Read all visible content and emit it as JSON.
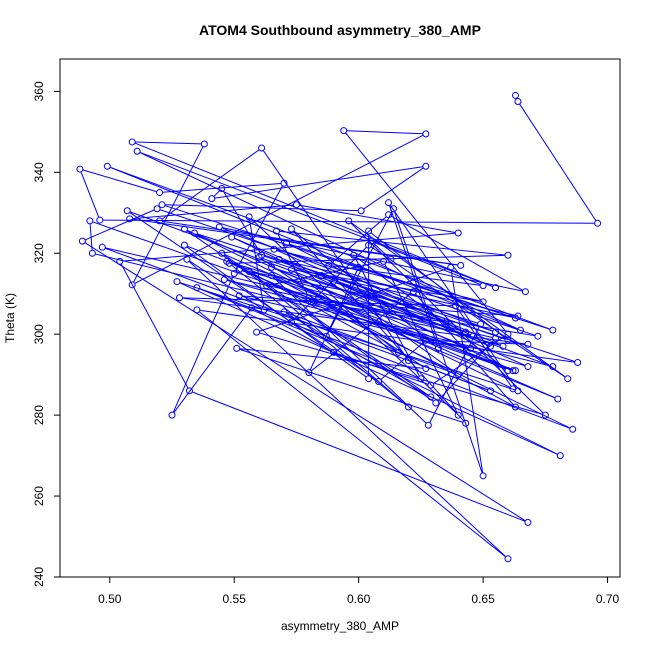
{
  "chart_data": {
    "type": "line",
    "title": "ATOM4 Southbound asymmetry_380_AMP",
    "xlabel": "asymmetry_380_AMP",
    "ylabel": "Theta (K)",
    "xlim": [
      0.48,
      0.705
    ],
    "ylim": [
      240,
      368
    ],
    "x_ticks": [
      0.5,
      0.55,
      0.6,
      0.65,
      0.7
    ],
    "x_tick_labels": [
      "0.50",
      "0.55",
      "0.60",
      "0.65",
      "0.70"
    ],
    "y_ticks": [
      240,
      260,
      280,
      300,
      320,
      340,
      360
    ],
    "y_tick_labels": [
      "240",
      "260",
      "280",
      "300",
      "320",
      "340",
      "360"
    ],
    "grid": false,
    "legend": "none",
    "series": [
      {
        "color": "#0000ff",
        "marker": "open-circle",
        "points": [
          [
            0.663,
            359.0
          ],
          [
            0.664,
            357.5
          ],
          [
            0.696,
            327.4
          ],
          [
            0.496,
            328.2
          ],
          [
            0.488,
            340.8
          ],
          [
            0.52,
            335.0
          ],
          [
            0.57,
            337.3
          ],
          [
            0.55,
            315.0
          ],
          [
            0.525,
            280.0
          ],
          [
            0.557,
            306.5
          ],
          [
            0.59,
            295.5
          ],
          [
            0.629,
            287.4
          ],
          [
            0.66,
            300.0
          ],
          [
            0.594,
            350.3
          ],
          [
            0.627,
            349.5
          ],
          [
            0.509,
            312.2
          ],
          [
            0.538,
            347.0
          ],
          [
            0.509,
            347.5
          ],
          [
            0.655,
            311.5
          ],
          [
            0.511,
            345.2
          ],
          [
            0.665,
            301.0
          ],
          [
            0.499,
            341.5
          ],
          [
            0.678,
            301.0
          ],
          [
            0.521,
            332.0
          ],
          [
            0.601,
            330.5
          ],
          [
            0.627,
            341.5
          ],
          [
            0.541,
            333.5
          ],
          [
            0.545,
            336.0
          ],
          [
            0.561,
            319.5
          ],
          [
            0.66,
            298.5
          ],
          [
            0.604,
            325.5
          ],
          [
            0.604,
            289.0
          ],
          [
            0.53,
            322.0
          ],
          [
            0.663,
            291.0
          ],
          [
            0.492,
            328.0
          ],
          [
            0.493,
            320.0
          ],
          [
            0.678,
            292.0
          ],
          [
            0.507,
            330.5
          ],
          [
            0.608,
            288.3
          ],
          [
            0.627,
            298.5
          ],
          [
            0.668,
            297.5
          ],
          [
            0.528,
            309.0
          ],
          [
            0.639,
            307.0
          ],
          [
            0.662,
            286.5
          ],
          [
            0.53,
            326.0
          ],
          [
            0.631,
            283.0
          ],
          [
            0.655,
            299.0
          ],
          [
            0.497,
            321.5
          ],
          [
            0.653,
            286.0
          ],
          [
            0.62,
            293.5
          ],
          [
            0.561,
            346.0
          ],
          [
            0.52,
            328.0
          ],
          [
            0.641,
            317.0
          ],
          [
            0.508,
            328.5
          ],
          [
            0.575,
            332.0
          ],
          [
            0.64,
            325.0
          ],
          [
            0.504,
            318.0
          ],
          [
            0.532,
            286.0
          ],
          [
            0.668,
            253.5
          ],
          [
            0.489,
            323.0
          ],
          [
            0.519,
            331.0
          ],
          [
            0.672,
            299.5
          ],
          [
            0.58,
            309.0
          ],
          [
            0.567,
            325.5
          ],
          [
            0.66,
            319.5
          ],
          [
            0.548,
            317.5
          ],
          [
            0.62,
            282.0
          ],
          [
            0.563,
            312.0
          ],
          [
            0.61,
            318.0
          ],
          [
            0.64,
            280.0
          ],
          [
            0.556,
            329.0
          ],
          [
            0.562,
            306.0
          ],
          [
            0.531,
            318.5
          ],
          [
            0.66,
            244.5
          ],
          [
            0.535,
            306.0
          ],
          [
            0.688,
            293.0
          ],
          [
            0.56,
            319.0
          ],
          [
            0.627,
            291.5
          ],
          [
            0.551,
            296.5
          ],
          [
            0.643,
            278.0
          ],
          [
            0.573,
            326.0
          ],
          [
            0.632,
            296.5
          ],
          [
            0.612,
            332.5
          ],
          [
            0.664,
            286.0
          ],
          [
            0.527,
            313.0
          ],
          [
            0.681,
            270.0
          ],
          [
            0.573,
            303.0
          ],
          [
            0.604,
            322.0
          ],
          [
            0.684,
            289.0
          ],
          [
            0.596,
            328.0
          ],
          [
            0.675,
            280.0
          ],
          [
            0.559,
            300.5
          ],
          [
            0.637,
            316.5
          ],
          [
            0.65,
            265.0
          ],
          [
            0.614,
            331.0
          ],
          [
            0.587,
            299.5
          ],
          [
            0.6,
            316.5
          ],
          [
            0.58,
            290.5
          ],
          [
            0.622,
            310.5
          ],
          [
            0.663,
            282.0
          ],
          [
            0.565,
            314.5
          ],
          [
            0.628,
            277.5
          ],
          [
            0.649,
            302.5
          ],
          [
            0.534,
            325.0
          ],
          [
            0.66,
            291.0
          ],
          [
            0.598,
            319.5
          ],
          [
            0.625,
            289.0
          ],
          [
            0.535,
            311.5
          ],
          [
            0.686,
            276.5
          ],
          [
            0.547,
            318.0
          ],
          [
            0.643,
            300.5
          ],
          [
            0.566,
            321.0
          ],
          [
            0.65,
            308.0
          ],
          [
            0.573,
            316.0
          ],
          [
            0.616,
            295.5
          ],
          [
            0.556,
            315.5
          ],
          [
            0.658,
            297.0
          ],
          [
            0.617,
            308.0
          ],
          [
            0.552,
            316.0
          ],
          [
            0.68,
            284.0
          ],
          [
            0.545,
            320.0
          ],
          [
            0.629,
            284.5
          ],
          [
            0.57,
            305.5
          ],
          [
            0.64,
            290.0
          ],
          [
            0.585,
            314.5
          ],
          [
            0.663,
            304.0
          ],
          [
            0.571,
            322.5
          ],
          [
            0.646,
            299.5
          ],
          [
            0.546,
            313.5
          ],
          [
            0.668,
            292.0
          ],
          [
            0.59,
            313.0
          ],
          [
            0.653,
            297.0
          ],
          [
            0.549,
            324.0
          ],
          [
            0.662,
            291.0
          ],
          [
            0.581,
            308.0
          ],
          [
            0.635,
            303.0
          ],
          [
            0.565,
            316.5
          ],
          [
            0.645,
            296.5
          ],
          [
            0.552,
            309.5
          ],
          [
            0.664,
            304.5
          ],
          [
            0.568,
            318.5
          ],
          [
            0.655,
            300.5
          ],
          [
            0.544,
            326.5
          ],
          [
            0.667,
            310.5
          ],
          [
            0.612,
            329.5
          ],
          [
            0.588,
            317.0
          ],
          [
            0.65,
            312.0
          ],
          [
            0.605,
            323.0
          ],
          [
            0.613,
            318.5
          ]
        ]
      }
    ]
  }
}
